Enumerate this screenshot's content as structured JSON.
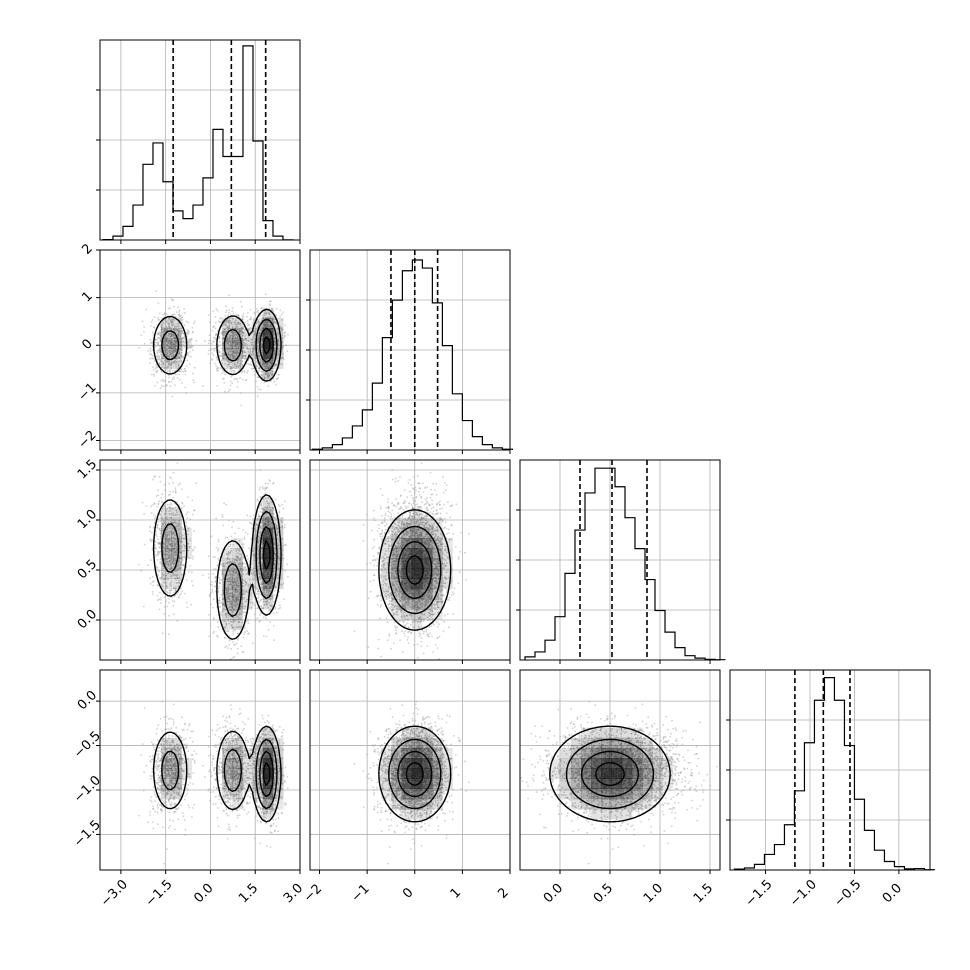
{
  "chart_data": {
    "type": "corner",
    "parameters": 4,
    "grid": true,
    "params": [
      {
        "range": [
          -3.7,
          3.0
        ],
        "ticks": [
          -3.0,
          -1.5,
          0.0,
          1.5,
          3.0
        ],
        "tick_labels": [
          "−3.0",
          "−1.5",
          "0.0",
          "1.5",
          "3.0"
        ],
        "quantiles": [
          -1.25,
          0.7,
          1.85
        ],
        "hist_bin_width": 0.335,
        "hist": [
          0.2,
          2,
          7,
          18,
          39,
          50,
          30,
          15,
          11,
          18,
          32,
          57,
          43,
          43,
          100,
          51,
          10,
          2,
          0.1
        ],
        "hist_ymax": 102
      },
      {
        "range": [
          -2.2,
          2.0
        ],
        "ticks": [
          -2,
          -1,
          0,
          1,
          2
        ],
        "tick_labels": [
          "−2",
          "−1",
          "0",
          "1",
          "2"
        ],
        "quantiles": [
          -0.5,
          0.0,
          0.48
        ],
        "hist_bin_width": 0.21,
        "hist": [
          0.3,
          0.8,
          2,
          4.5,
          9,
          15,
          25,
          42,
          56,
          67,
          71,
          68,
          55,
          39,
          21,
          11,
          5,
          2,
          0.8,
          0.3
        ],
        "hist_ymax": 74
      },
      {
        "range": [
          -0.4,
          1.6
        ],
        "ticks": [
          0.0,
          0.5,
          1.0,
          1.5
        ],
        "tick_labels": [
          "0.0",
          "0.5",
          "1.0",
          "1.5"
        ],
        "quantiles": [
          0.2,
          0.52,
          0.87
        ],
        "hist_bin_width": 0.1,
        "hist": [
          0.5,
          1.3,
          3.2,
          7,
          14,
          21,
          27,
          31,
          31,
          28,
          23,
          18,
          13,
          8,
          4.5,
          2,
          0.7,
          0.3,
          0.1,
          0.05
        ],
        "hist_ymax": 32
      },
      {
        "range": [
          -1.9,
          0.35
        ],
        "ticks": [
          -1.5,
          -1.0,
          -0.5,
          0.0
        ],
        "tick_labels": [
          "−1.5",
          "−1.0",
          "−0.5",
          "0.0"
        ],
        "quantiles": [
          -1.17,
          -0.85,
          -0.55
        ],
        "hist_bin_width": 0.1125,
        "hist": [
          0.3,
          0.7,
          2,
          5.5,
          9,
          16,
          28,
          45,
          60,
          68,
          60,
          44,
          25,
          14,
          7,
          3,
          1.2,
          0.4,
          0.5,
          0.1
        ],
        "hist_ymax": 70
      }
    ],
    "y_tick_labels": {
      "1": [
        "−2",
        "−1",
        "0",
        "1",
        "2"
      ],
      "2": [
        "0.0",
        "0.5",
        "1.0",
        "1.5"
      ],
      "3": [
        "−1.5",
        "−1.0",
        "−0.5",
        "0.0"
      ]
    },
    "x_tick_labels_bottom": {
      "0": [
        "−3.0",
        "−1.5",
        "0.0",
        "1.5",
        "3.0"
      ],
      "1": [
        "−2",
        "−1",
        "0",
        "1",
        "2"
      ],
      "2": [
        "0.0",
        "0.5",
        "1.0",
        "1.5"
      ],
      "3": [
        "−1.5",
        "−1.0",
        "−0.5",
        "0.0"
      ]
    },
    "modes": {
      "p0": [
        {
          "mean": -1.35,
          "sd": 0.32,
          "w": 0.28,
          "p2": 0.72,
          "p3": -0.78
        },
        {
          "mean": 0.75,
          "sd": 0.3,
          "w": 0.28,
          "p2": 0.3,
          "p3": -0.78
        },
        {
          "mean": 1.88,
          "sd": 0.22,
          "w": 0.44,
          "p2": 0.65,
          "p3": -0.82
        }
      ],
      "p1": {
        "mean": 0.0,
        "sd": 0.35
      },
      "p2": {
        "mean": 0.5,
        "sd": 0.28
      },
      "p3": {
        "mean": -0.85,
        "sd": 0.25
      }
    },
    "colors": {
      "line": "#000000",
      "grid": "#b0b0b0",
      "scatter": "#9a9a9a",
      "density": "#000000"
    }
  }
}
